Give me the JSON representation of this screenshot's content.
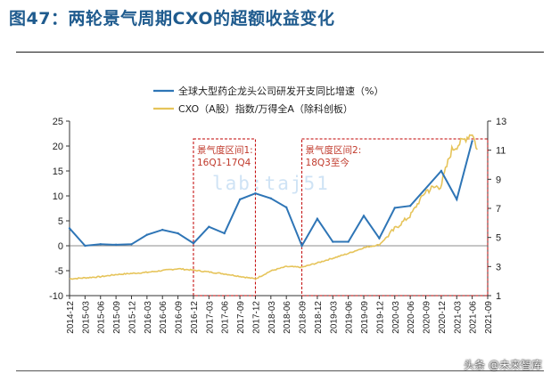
{
  "title": "图47：两轮景气周期CXO的超额收益变化",
  "watermark": "头条 @未来智库",
  "faint_mark": "lab:taj51",
  "chart_data": {
    "type": "line",
    "legend": [
      {
        "name": "全球大型药企龙头公司研发开支同比增速（%）",
        "color": "#2e75b6"
      },
      {
        "name": "CXO（A股）指数/万得全A（除科创板）",
        "color": "#e6c45a"
      }
    ],
    "legend_position": "top",
    "categories": [
      "2014-12",
      "2015-03",
      "2015-06",
      "2015-09",
      "2015-12",
      "2016-03",
      "2016-06",
      "2016-09",
      "2016-12",
      "2017-03",
      "2017-06",
      "2017-09",
      "2017-12",
      "2018-03",
      "2018-06",
      "2018-09",
      "2018-12",
      "2019-03",
      "2019-06",
      "2019-09",
      "2019-12",
      "2020-03",
      "2020-06",
      "2020-09",
      "2020-12",
      "2021-03",
      "2021-06",
      "2021-09"
    ],
    "y_left": {
      "ticks": [
        25,
        20,
        15,
        10,
        5,
        0,
        -5,
        -10
      ],
      "range": [
        -10,
        25
      ]
    },
    "y_right": {
      "ticks": [
        13,
        11,
        9,
        7,
        5,
        3,
        1
      ],
      "range": [
        1,
        13
      ]
    },
    "series": [
      {
        "name": "全球大型药企龙头公司研发开支同比增速（%）",
        "axis": "left",
        "color": "#2e75b6",
        "values": [
          3.5,
          0,
          0.3,
          0.2,
          0.3,
          2.2,
          3.2,
          2.5,
          0.5,
          3.8,
          2.5,
          9.3,
          10.5,
          9.5,
          7.7,
          0,
          5.4,
          0.8,
          0.8,
          6,
          1.5,
          7.6,
          8,
          null,
          15,
          9.3,
          21,
          null
        ]
      },
      {
        "name": "CXO（A股）指数/万得全A（除科创板）",
        "axis": "right",
        "color": "#e6c45a",
        "x_start": "2014-12",
        "x_end": "2021-07",
        "anchors": [
          [
            "2014-12",
            2.15
          ],
          [
            "2015-06",
            2.3
          ],
          [
            "2015-09",
            2.45
          ],
          [
            "2016-03",
            2.6
          ],
          [
            "2016-09",
            2.85
          ],
          [
            "2016-12",
            2.75
          ],
          [
            "2017-06",
            2.5
          ],
          [
            "2017-12",
            2.15
          ],
          [
            "2018-03",
            2.7
          ],
          [
            "2018-06",
            3.0
          ],
          [
            "2018-09",
            2.95
          ],
          [
            "2018-12",
            3.25
          ],
          [
            "2019-06",
            3.9
          ],
          [
            "2019-09",
            4.3
          ],
          [
            "2019-12",
            4.5
          ],
          [
            "2020-03",
            5.6
          ],
          [
            "2020-06",
            6.5
          ],
          [
            "2020-09",
            8.2
          ],
          [
            "2020-12",
            8.6
          ],
          [
            "2021-02",
            11.0
          ],
          [
            "2021-04",
            11.6
          ],
          [
            "2021-06",
            12.2
          ],
          [
            "2021-07",
            11.0
          ]
        ]
      }
    ],
    "annotations": [
      {
        "label": "景气度区间1:",
        "sub": "16Q1-17Q4",
        "from": "2016-12",
        "to": "2017-12"
      },
      {
        "label": "景气度区间2:",
        "sub": "18Q3至今",
        "from": "2018-09",
        "to": "2021-09"
      }
    ]
  }
}
